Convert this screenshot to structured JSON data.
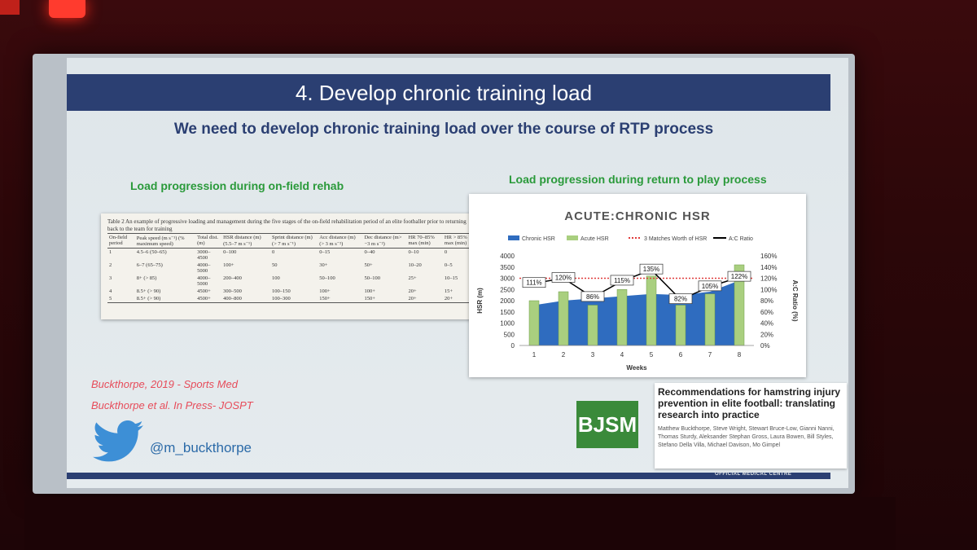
{
  "slide": {
    "title": "4. Develop chronic training load",
    "subtitle": "We need to develop chronic training load over the course of RTP process",
    "left_label": "Load progression during on-field rehab",
    "right_label": "Load progression during return to play process",
    "citation_1": "Buckthorpe, 2019 - Sports Med",
    "citation_2": "Buckthorpe et al. In Press- JOSPT",
    "twitter_handle": "@m_buckthorpe",
    "logo_text": "BJSM",
    "paper_title": "Recommendations for hamstring injury prevention in elite football: translating research into practice",
    "paper_authors": "Matthew Buckthorpe, Steve Wright, Stewart Bruce-Low, Gianni Nanni, Thomas Sturdy, Aleksander Stephan Gross, Laura Bowen, Bill Styles, Stefano Della Villa, Michael Davison, Mo Gimpel",
    "footer_text": "OFFICIAL MEDICAL CENTRE"
  },
  "table": {
    "caption": "Table 2  An example of progressive loading and management during the five stages of the on-field rehabilitation period of an elite footballer prior to returning back to the team for training",
    "headers": [
      "On-field period",
      "Peak speed (m s⁻¹) (% maximum speed)",
      "Total dist. (m)",
      "HSR distance (m) (5.5–7 m s⁻¹)",
      "Sprint distance (m) (> 7 m s⁻¹)",
      "Acc distance (m) (> 3 m s⁻²)",
      "Dec distance (m> −3 m s⁻²)",
      "HR 70–85% max (min)",
      "HR > 85% max (min)"
    ],
    "rows": [
      [
        "1",
        "4.5–6 (50–65)",
        "3000–4500",
        "0–100",
        "0",
        "0–15",
        "0–40",
        "0–10",
        "0"
      ],
      [
        "2",
        "6–7 (65–75)",
        "4000–5000",
        "100+",
        "50",
        "30+",
        "50+",
        "10–20",
        "0–5"
      ],
      [
        "3",
        "8+ (> 85)",
        "4000–5000",
        "200–400",
        "100",
        "50–100",
        "50–100",
        "25+",
        "10–15"
      ],
      [
        "4",
        "8.5+ (> 90)",
        "4500+",
        "300–500",
        "100–150",
        "100+",
        "100+",
        "20+",
        "15+"
      ],
      [
        "5",
        "8.5+ (> 90)",
        "4500+",
        "400–800",
        "100–300",
        "150+",
        "150+",
        "20+",
        "20+"
      ]
    ]
  },
  "chart_data": {
    "type": "bar",
    "title": "ACUTE:CHRONIC HSR",
    "xlabel": "Weeks",
    "ylabel": "HSR (m)",
    "y2label": "A:C Ratio (%)",
    "categories": [
      "1",
      "2",
      "3",
      "4",
      "5",
      "6",
      "7",
      "8"
    ],
    "ylim": [
      0,
      4000
    ],
    "y_ticks": [
      0,
      500,
      1000,
      1500,
      2000,
      2500,
      3000,
      3500,
      4000
    ],
    "y2lim": [
      0,
      160
    ],
    "y2_ticks": [
      "0%",
      "20%",
      "40%",
      "60%",
      "80%",
      "100%",
      "120%",
      "140%",
      "160%"
    ],
    "legend": [
      "Chronic HSR",
      "Acute HSR",
      "3 Matches Worth of HSR",
      "A:C Ratio"
    ],
    "legend_position": "top",
    "series": [
      {
        "name": "Chronic HSR",
        "type": "area",
        "color": "#2f6cbf",
        "values": [
          1800,
          2000,
          2100,
          2200,
          2300,
          2250,
          2400,
          2900
        ]
      },
      {
        "name": "Acute HSR",
        "type": "bar",
        "color": "#a9cf7f",
        "values": [
          2000,
          2400,
          1800,
          2500,
          3100,
          1800,
          2300,
          3600
        ]
      },
      {
        "name": "3 Matches Worth of HSR",
        "type": "line",
        "style": "dotted",
        "color": "#e03b3b",
        "values": [
          3000,
          3000,
          3000,
          3000,
          3000,
          3000,
          3000,
          3000
        ]
      },
      {
        "name": "A:C Ratio",
        "type": "line",
        "color": "#000000",
        "axis": "y2",
        "values": [
          111,
          120,
          86,
          115,
          135,
          82,
          105,
          122
        ]
      }
    ],
    "ratio_labels": [
      "111%",
      "120%",
      "86%",
      "115%",
      "135%",
      "82%",
      "105%",
      "122%"
    ]
  }
}
